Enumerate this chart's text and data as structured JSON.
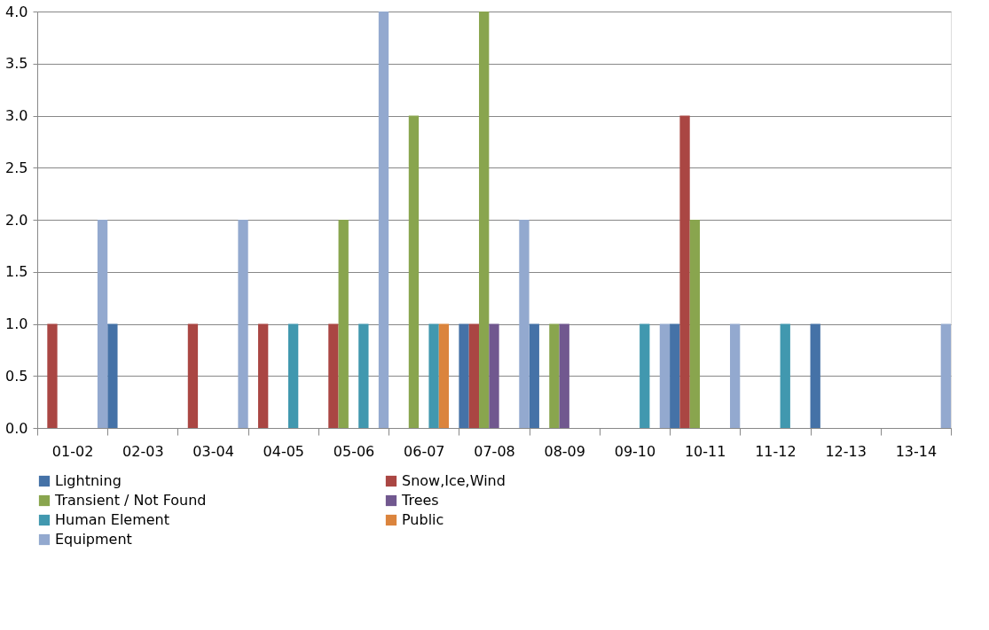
{
  "chart_data": {
    "type": "bar",
    "categories": [
      "01-02",
      "02-03",
      "03-04",
      "04-05",
      "05-06",
      "06-07",
      "07-08",
      "08-09",
      "09-10",
      "10-11",
      "11-12",
      "12-13",
      "13-14"
    ],
    "series": [
      {
        "name": "Lightning",
        "color": "#4572a7",
        "values": [
          null,
          1,
          null,
          null,
          null,
          null,
          1,
          1,
          null,
          1,
          null,
          1,
          null
        ]
      },
      {
        "name": "Snow,Ice,Wind",
        "color": "#aa4643",
        "values": [
          1,
          null,
          1,
          1,
          1,
          null,
          1,
          null,
          null,
          3,
          null,
          null,
          null
        ]
      },
      {
        "name": "Transient / Not Found",
        "color": "#89a54e",
        "values": [
          null,
          null,
          null,
          null,
          2,
          3,
          4,
          1,
          null,
          2,
          null,
          null,
          null
        ]
      },
      {
        "name": "Trees",
        "color": "#71588f",
        "values": [
          null,
          null,
          null,
          null,
          null,
          null,
          1,
          1,
          null,
          null,
          null,
          null,
          null
        ]
      },
      {
        "name": "Human Element",
        "color": "#4198af",
        "values": [
          null,
          null,
          null,
          1,
          1,
          1,
          null,
          null,
          1,
          null,
          1,
          null,
          null
        ]
      },
      {
        "name": "Public",
        "color": "#db843d",
        "values": [
          null,
          null,
          null,
          null,
          null,
          1,
          null,
          null,
          null,
          null,
          null,
          null,
          null
        ]
      },
      {
        "name": "Equipment",
        "color": "#93a9cf",
        "values": [
          2,
          null,
          2,
          null,
          4,
          null,
          2,
          null,
          1,
          1,
          null,
          null,
          1
        ]
      }
    ],
    "ylim": [
      0,
      4
    ],
    "yticks": [
      {
        "value": 0,
        "label": "0.0"
      },
      {
        "value": 0.5,
        "label": "0.5"
      },
      {
        "value": 1,
        "label": "1.0"
      },
      {
        "value": 1.5,
        "label": "1.5"
      },
      {
        "value": 2,
        "label": "2.0"
      },
      {
        "value": 2.5,
        "label": "2.5"
      },
      {
        "value": 3,
        "label": "3.0"
      },
      {
        "value": 3.5,
        "label": "3.5"
      },
      {
        "value": 4,
        "label": "4.0"
      }
    ],
    "grid": "y",
    "legend": "bottom"
  }
}
